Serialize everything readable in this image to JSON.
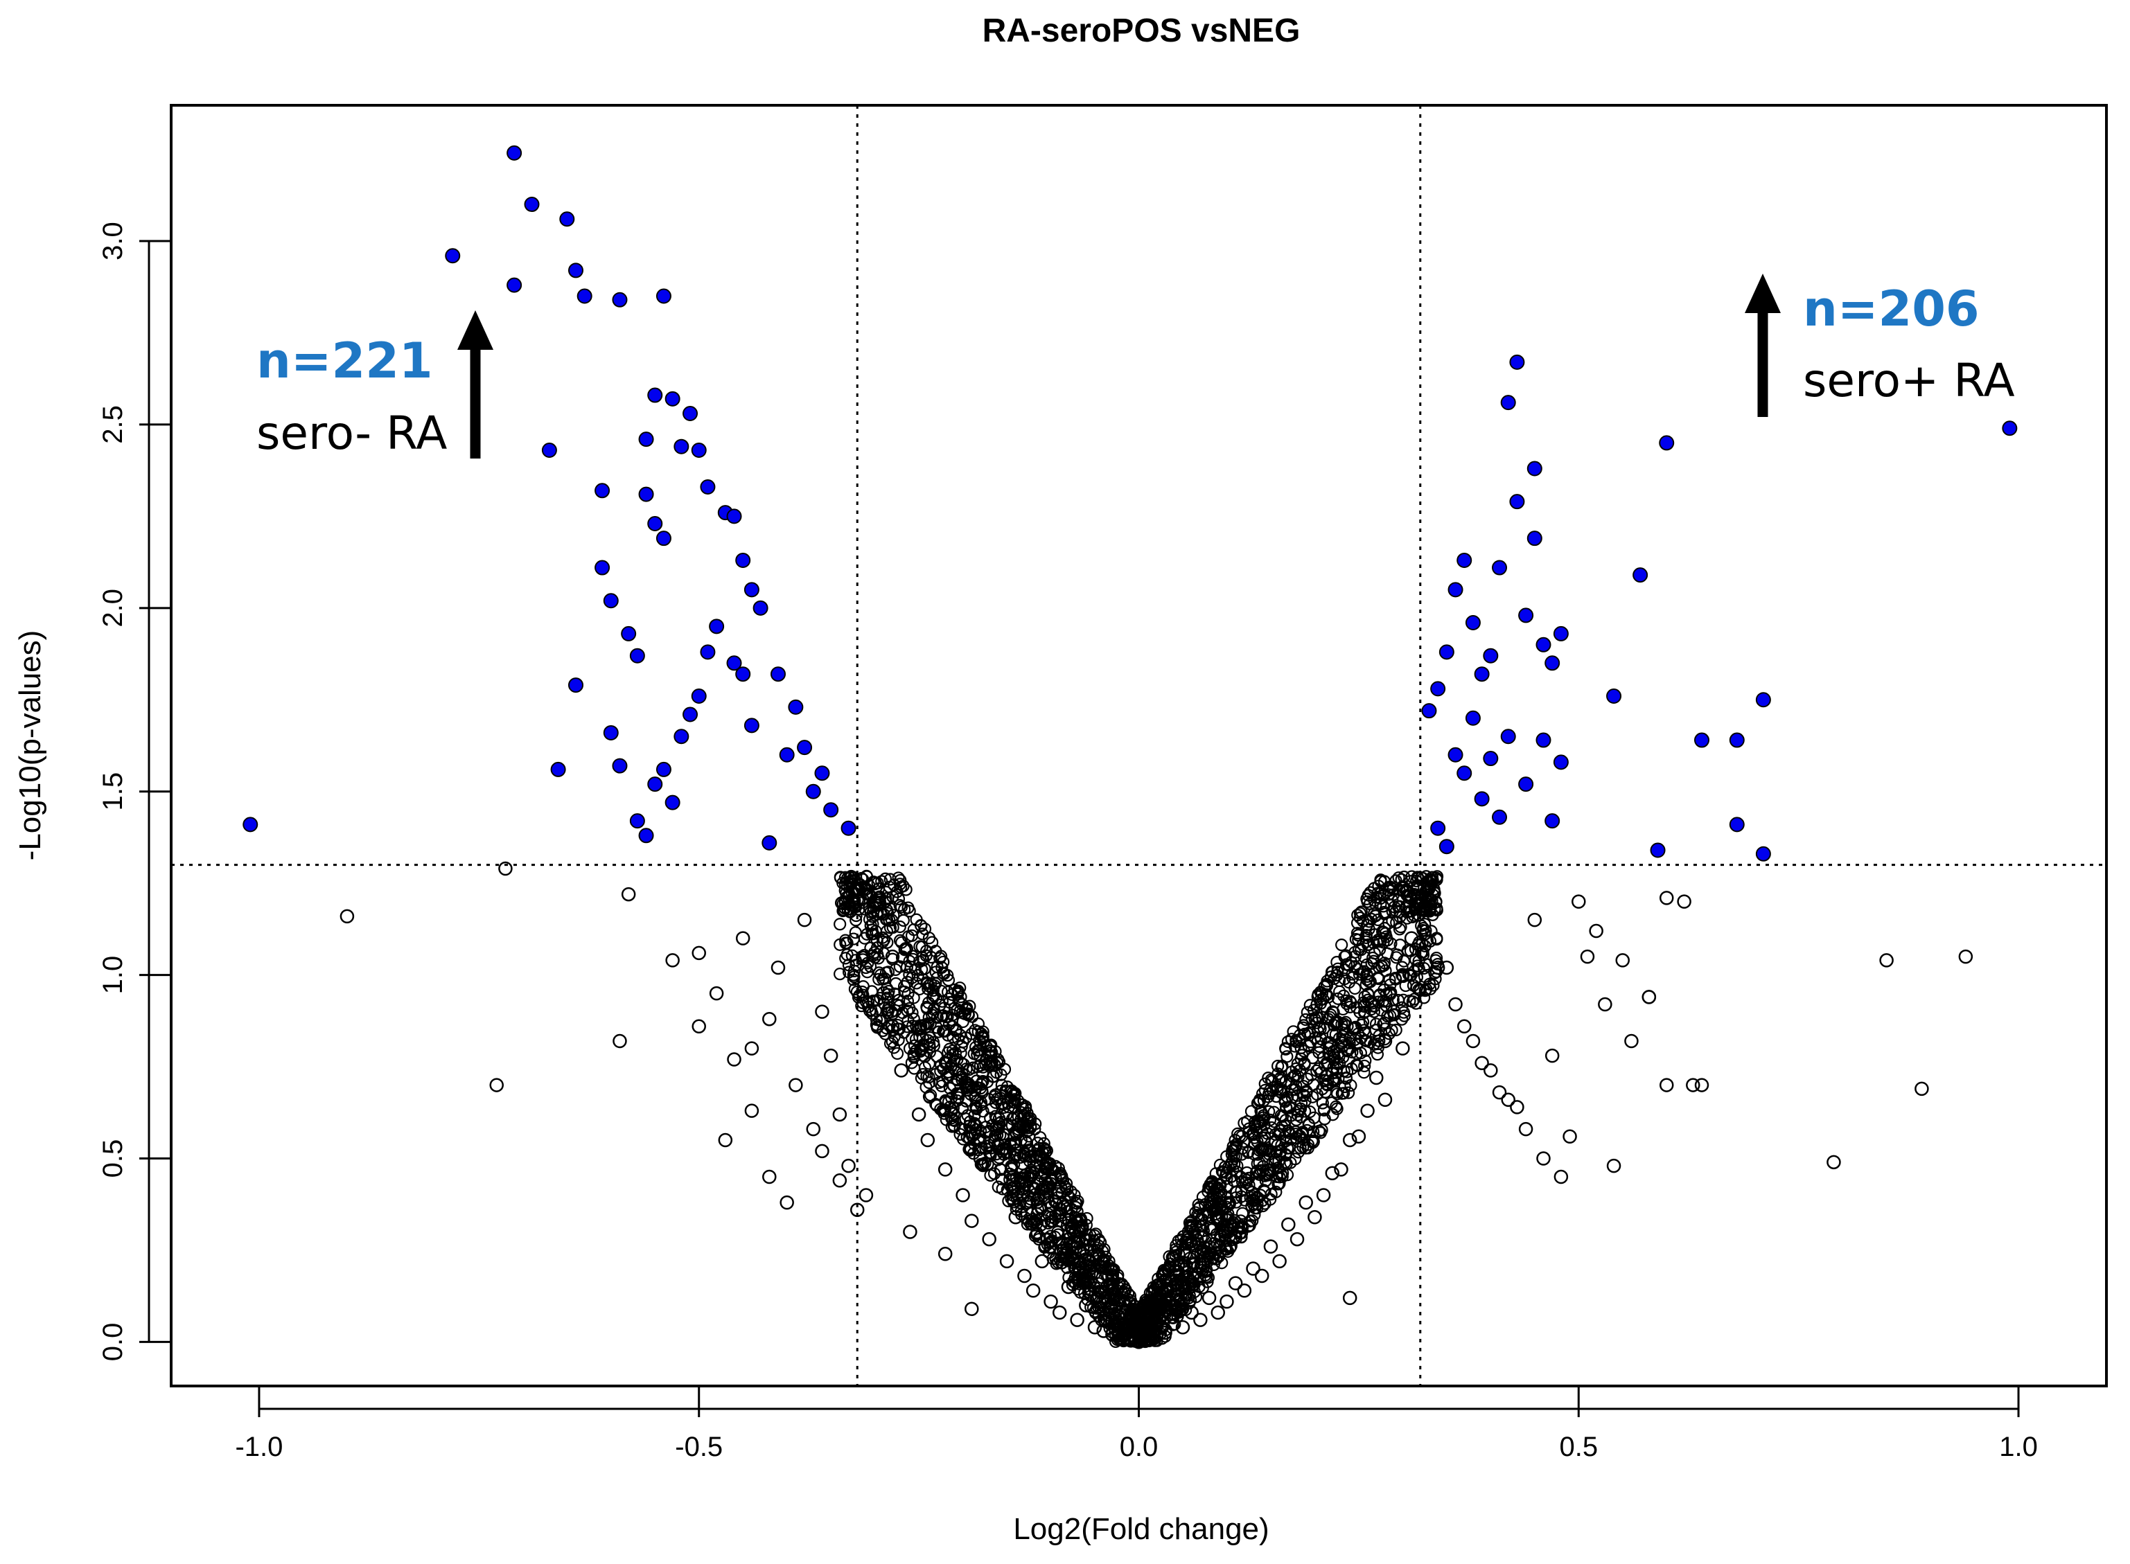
{
  "chart_data": {
    "type": "scatter",
    "title": "RA-seroPOS vsNEG",
    "xlabel": "Log2(Fold change)",
    "ylabel": "-Log10(p-values)",
    "xlim": [
      -1.1,
      1.1
    ],
    "ylim": [
      -0.12,
      3.37
    ],
    "x_ticks": [
      -1.0,
      -0.5,
      0.0,
      0.5,
      1.0
    ],
    "x_tick_labels": [
      "-1.0",
      "-0.5",
      "0.0",
      "0.5",
      "1.0"
    ],
    "y_ticks": [
      0.0,
      0.5,
      1.0,
      1.5,
      2.0,
      2.5,
      3.0
    ],
    "y_tick_labels": [
      "0.0",
      "0.5",
      "1.0",
      "1.5",
      "2.0",
      "2.5",
      "3.0"
    ],
    "thresholds": {
      "x": [
        -0.32,
        0.32
      ],
      "y": 1.3
    },
    "grid": false,
    "legend": "none",
    "colors": {
      "significant": "#0000ee",
      "nonsignificant_stroke": "#000000",
      "count_text": "#1f77c4",
      "arrow": "#000000"
    },
    "annotations": [
      {
        "count": "n=221",
        "label": "sero- RA"
      },
      {
        "count": "n=206",
        "label": "sero+ RA"
      }
    ],
    "series": [
      {
        "group": "significant",
        "x": [
          -0.71,
          -0.69,
          -0.78,
          -0.71,
          -0.65,
          -0.64,
          -0.63,
          -0.59,
          -0.54,
          -1.01,
          -0.67,
          -0.55,
          -0.53,
          -0.56,
          -0.52,
          -0.51,
          -0.61,
          -0.61,
          -0.6,
          -0.56,
          -0.55,
          -0.54,
          -0.58,
          -0.59,
          -0.57,
          -0.5,
          -0.49,
          -0.47,
          -0.46,
          -0.45,
          -0.44,
          -0.43,
          -0.48,
          -0.49,
          -0.5,
          -0.46,
          -0.45,
          -0.51,
          -0.52,
          -0.57,
          -0.56,
          -0.55,
          -0.53,
          -0.54,
          -0.64,
          -0.66,
          -0.6,
          -0.41,
          -0.39,
          -0.38,
          -0.36,
          -0.37,
          -0.35,
          -0.33,
          -0.42,
          -0.44,
          -0.4,
          0.43,
          0.42,
          0.45,
          0.43,
          0.45,
          0.41,
          0.37,
          0.36,
          0.38,
          0.44,
          0.46,
          0.48,
          0.4,
          0.39,
          0.47,
          0.35,
          0.34,
          0.33,
          0.36,
          0.37,
          0.39,
          0.41,
          0.42,
          0.38,
          0.4,
          0.44,
          0.46,
          0.48,
          0.34,
          0.35,
          0.47,
          0.99,
          0.6,
          0.57,
          0.54,
          0.64,
          0.68,
          0.71,
          0.68,
          0.71,
          0.59
        ],
        "y": [
          3.24,
          3.1,
          2.96,
          2.88,
          3.06,
          2.92,
          2.85,
          2.84,
          2.85,
          1.41,
          2.43,
          2.58,
          2.57,
          2.46,
          2.44,
          2.53,
          2.32,
          2.11,
          2.02,
          2.31,
          2.23,
          2.19,
          1.93,
          1.57,
          1.87,
          2.43,
          2.33,
          2.26,
          2.25,
          2.13,
          2.05,
          2.0,
          1.95,
          1.88,
          1.76,
          1.85,
          1.82,
          1.71,
          1.65,
          1.42,
          1.38,
          1.52,
          1.47,
          1.56,
          1.79,
          1.56,
          1.66,
          1.82,
          1.73,
          1.62,
          1.55,
          1.5,
          1.45,
          1.4,
          1.36,
          1.68,
          1.6,
          2.67,
          2.56,
          2.38,
          2.29,
          2.19,
          2.11,
          2.13,
          2.05,
          1.96,
          1.98,
          1.9,
          1.93,
          1.87,
          1.82,
          1.85,
          1.88,
          1.78,
          1.72,
          1.6,
          1.55,
          1.48,
          1.43,
          1.65,
          1.7,
          1.59,
          1.52,
          1.64,
          1.58,
          1.4,
          1.35,
          1.42,
          2.49,
          2.45,
          2.09,
          1.76,
          1.64,
          1.64,
          1.75,
          1.41,
          1.33,
          1.34
        ]
      },
      {
        "group": "nonsignificant",
        "x": [
          -0.72,
          -0.9,
          -0.73,
          -0.59,
          -0.58,
          -0.53,
          -0.5,
          -0.5,
          -0.48,
          -0.46,
          -0.44,
          -0.4,
          -0.42,
          -0.47,
          -0.45,
          -0.38,
          -0.36,
          -0.35,
          -0.34,
          -0.33,
          -0.31,
          -0.3,
          -0.29,
          -0.28,
          -0.27,
          -0.25,
          -0.24,
          -0.22,
          -0.2,
          -0.19,
          -0.17,
          -0.15,
          -0.13,
          -0.12,
          -0.1,
          -0.09,
          -0.07,
          -0.05,
          -0.04,
          -0.03,
          -0.02,
          -0.01,
          0.0,
          0.01,
          0.02,
          0.03,
          0.05,
          0.07,
          0.09,
          0.1,
          0.12,
          0.14,
          0.16,
          0.18,
          0.2,
          0.21,
          0.23,
          0.24,
          0.26,
          0.27,
          0.28,
          0.29,
          0.3,
          0.31,
          0.32,
          0.33,
          0.34,
          0.36,
          0.38,
          0.4,
          0.42,
          0.44,
          0.46,
          0.48,
          0.5,
          0.52,
          0.55,
          0.58,
          0.6,
          0.62,
          0.64,
          0.85,
          0.94,
          0.89,
          0.79,
          0.6,
          0.63,
          0.54,
          0.58,
          -0.41,
          -0.44,
          -0.39,
          -0.37,
          -0.42,
          -0.36,
          -0.34,
          -0.32,
          -0.26,
          -0.22,
          -0.3,
          -0.28,
          -0.24,
          -0.21,
          -0.18,
          -0.14,
          -0.11,
          -0.08,
          -0.06,
          0.06,
          0.08,
          0.11,
          0.13,
          0.15,
          0.17,
          0.19,
          0.22,
          0.25,
          0.28,
          0.3,
          0.35,
          0.37,
          0.39,
          0.41,
          0.43,
          0.45,
          0.47,
          0.49,
          0.51,
          0.53,
          0.56,
          0.24,
          -0.19
        ],
        "y": [
          1.29,
          1.16,
          0.7,
          0.82,
          1.22,
          1.04,
          1.06,
          0.86,
          0.95,
          0.77,
          0.63,
          0.38,
          0.45,
          0.55,
          1.1,
          1.15,
          0.9,
          0.78,
          0.62,
          0.48,
          0.4,
          1.2,
          0.95,
          0.86,
          0.74,
          0.62,
          0.55,
          0.47,
          0.4,
          0.33,
          0.28,
          0.22,
          0.18,
          0.14,
          0.11,
          0.08,
          0.06,
          0.04,
          0.03,
          0.02,
          0.01,
          0.005,
          0.0,
          0.006,
          0.015,
          0.025,
          0.04,
          0.06,
          0.08,
          0.11,
          0.14,
          0.18,
          0.22,
          0.28,
          0.34,
          0.4,
          0.47,
          0.55,
          0.63,
          0.72,
          0.82,
          0.9,
          1.0,
          1.1,
          1.18,
          1.25,
          1.02,
          0.92,
          0.82,
          0.74,
          0.66,
          0.58,
          0.5,
          0.45,
          1.2,
          1.12,
          1.04,
          0.94,
          1.21,
          1.2,
          0.7,
          1.04,
          1.05,
          0.69,
          0.49,
          0.7,
          0.7,
          0.48,
          0.94,
          1.02,
          0.8,
          0.7,
          0.58,
          0.88,
          0.52,
          0.44,
          0.36,
          0.3,
          0.24,
          1.25,
          1.05,
          0.82,
          0.7,
          0.5,
          0.34,
          0.22,
          0.15,
          0.1,
          0.08,
          0.12,
          0.16,
          0.2,
          0.26,
          0.32,
          0.38,
          0.46,
          0.56,
          0.66,
          0.8,
          1.02,
          0.86,
          0.76,
          0.68,
          0.64,
          1.15,
          0.78,
          0.56,
          1.05,
          0.92,
          0.82,
          0.12,
          0.09
        ]
      }
    ]
  }
}
